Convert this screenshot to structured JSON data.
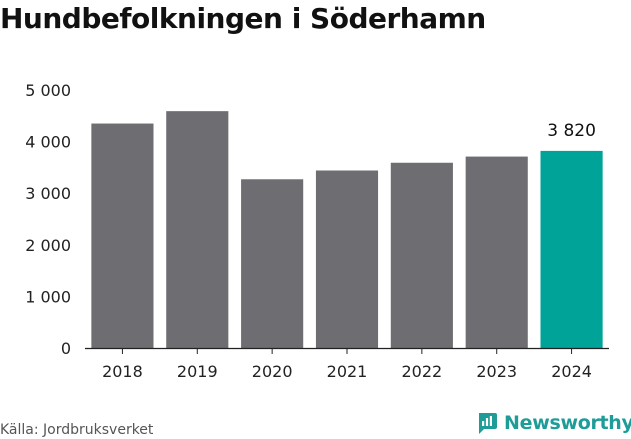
{
  "chart_data": {
    "type": "bar",
    "title": "Hundbefolkningen i Söderhamn",
    "categories": [
      "2018",
      "2019",
      "2020",
      "2021",
      "2022",
      "2023",
      "2024"
    ],
    "values": [
      4350,
      4590,
      3270,
      3440,
      3590,
      3710,
      3820
    ],
    "data_labels": [
      {
        "index": 6,
        "text": "3 820"
      }
    ],
    "y_ticks": [
      0,
      1000,
      2000,
      3000,
      4000,
      5000
    ],
    "y_tick_labels": [
      "0",
      "1 000",
      "2 000",
      "3 000",
      "4 000",
      "5 000"
    ],
    "ylim": [
      0,
      5000
    ],
    "xlabel": "",
    "ylabel": "",
    "grid": false,
    "colors": {
      "default": "#6e6d72",
      "highlight": "#00a398"
    },
    "highlight_index": 6
  },
  "source": "Källa: Jordbruksverket",
  "brand": {
    "name": "Newsworthy",
    "color": "#1d9c98",
    "icon": "newsworthy-logo-icon"
  }
}
